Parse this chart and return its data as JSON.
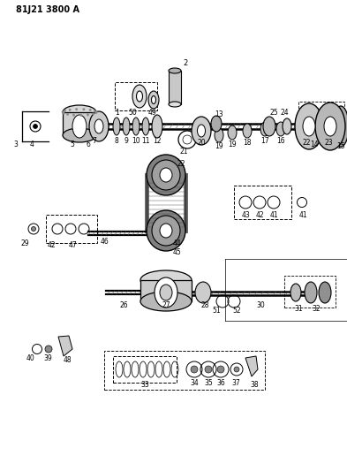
{
  "title": "81J21 3800 A",
  "bg_color": "#ffffff",
  "line_color": "#000000",
  "figsize": [
    3.93,
    5.33
  ],
  "dpi": 100
}
